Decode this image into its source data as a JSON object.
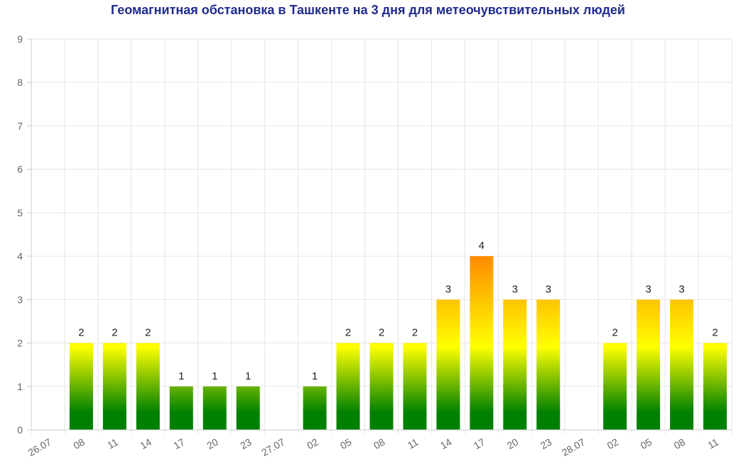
{
  "chart_data": {
    "type": "bar",
    "title": "Геомагнитная обстановка в Ташкенте на 3 дня для метеочувствительных людей",
    "xlabel": "",
    "ylabel": "",
    "ylim": [
      0,
      9
    ],
    "yticks": [
      "0",
      "1",
      "2",
      "3",
      "4",
      "5",
      "6",
      "7",
      "8",
      "9"
    ],
    "categories": [
      "26.07",
      "08",
      "11",
      "14",
      "17",
      "20",
      "23",
      "27.07",
      "02",
      "05",
      "08",
      "11",
      "14",
      "17",
      "20",
      "23",
      "28.07",
      "02",
      "05",
      "08",
      "11"
    ],
    "values": [
      null,
      2,
      2,
      2,
      1,
      1,
      1,
      null,
      1,
      2,
      2,
      2,
      3,
      4,
      3,
      3,
      null,
      2,
      3,
      3,
      2
    ],
    "grid": true,
    "legend": "none",
    "colors": {
      "low": "#008000",
      "mid": "#ffff00",
      "high": "#ff8c00",
      "title": "#1f2b8e",
      "grid": "#e6e6e6",
      "axis": "#cccccc"
    }
  }
}
